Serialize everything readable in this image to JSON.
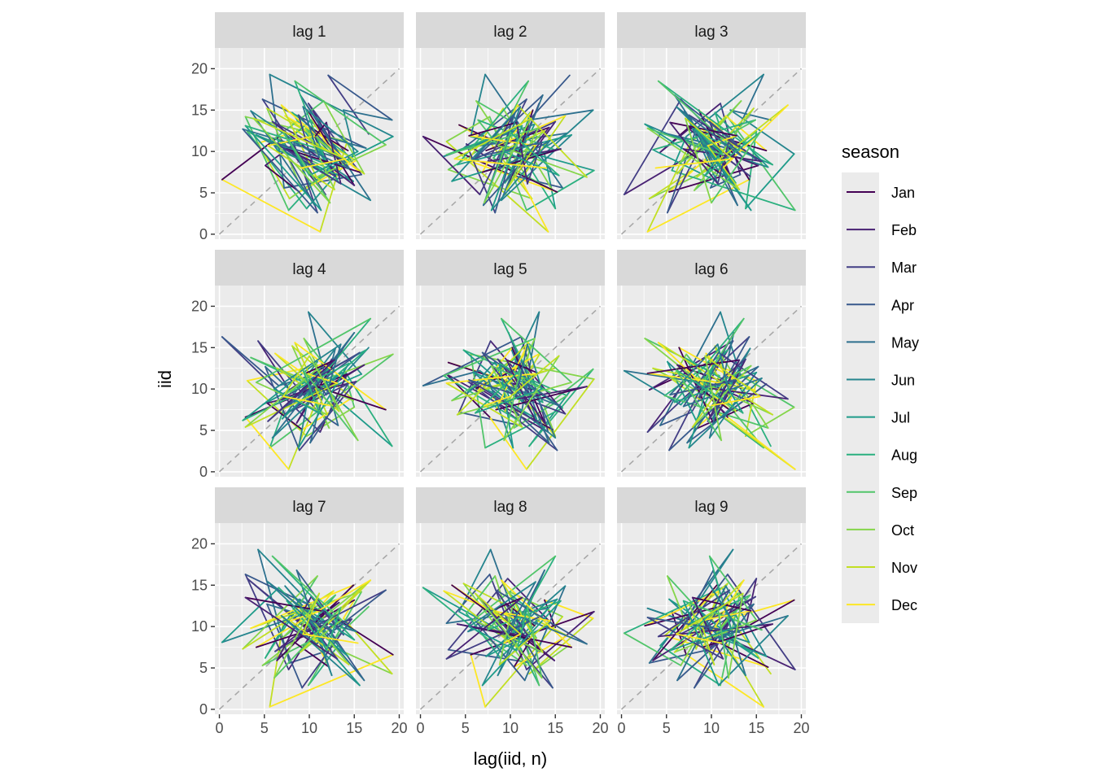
{
  "chart_data": {
    "type": "line",
    "title": "",
    "xlabel": "lag(iid, n)",
    "ylabel": "iid",
    "xlim": [
      0,
      20
    ],
    "ylim": [
      0,
      20
    ],
    "x_ticks": [
      "0",
      "5",
      "10",
      "15",
      "20"
    ],
    "y_ticks": [
      "0",
      "5",
      "10",
      "15",
      "20"
    ],
    "grid": true,
    "reference_line": "y = x (dashed)",
    "facets": [
      "lag 1",
      "lag 2",
      "lag 3",
      "lag 4",
      "lag 5",
      "lag 6",
      "lag 7",
      "lag 8",
      "lag 9"
    ],
    "legend": {
      "title": "season",
      "position": "right",
      "entries": [
        {
          "label": "Jan",
          "color": "#440154"
        },
        {
          "label": "Feb",
          "color": "#482173"
        },
        {
          "label": "Mar",
          "color": "#433E85"
        },
        {
          "label": "Apr",
          "color": "#38598C"
        },
        {
          "label": "May",
          "color": "#2D708E"
        },
        {
          "label": "Jun",
          "color": "#25858E"
        },
        {
          "label": "Jul",
          "color": "#1E9B8A"
        },
        {
          "label": "Aug",
          "color": "#2BB07F"
        },
        {
          "label": "Sep",
          "color": "#51C56A"
        },
        {
          "label": "Oct",
          "color": "#85D54A"
        },
        {
          "label": "Nov",
          "color": "#C2DF23"
        },
        {
          "label": "Dec",
          "color": "#FDE725"
        }
      ]
    },
    "series_note": "Monthly iid series approx. values (years as rows, Jan..Dec)",
    "series": [
      [
        16.6,
        12.1,
        19.2,
        13.8,
        15.0,
        9.7,
        3.1,
        12.4,
        7.8,
        4.3,
        11.0,
        13.2
      ],
      [
        9.9,
        15.8,
        7.2,
        5.6,
        19.3,
        11.8,
        7.7,
        2.9,
        14.2,
        11.2,
        0.3,
        6.6
      ],
      [
        11.8,
        4.8,
        16.3,
        10.4,
        12.2,
        8.1,
        14.7,
        9.2,
        5.3,
        15.2,
        8.9,
        5.1
      ],
      [
        8.3,
        10.9,
        2.6,
        12.7,
        9.4,
        13.3,
        6.2,
        11.6,
        16.1,
        7.3,
        14.3,
        10.1
      ],
      [
        12.9,
        7.0,
        10.6,
        3.5,
        14.9,
        6.4,
        10.2,
        13.8,
        8.6,
        12.5,
        9.8,
        15.0
      ],
      [
        5.9,
        13.6,
        9.0,
        16.8,
        4.1,
        12.0,
        8.4,
        18.5,
        10.8,
        6.9,
        15.6,
        7.5
      ],
      [
        10.3,
        8.8,
        14.4,
        7.9,
        11.3,
        2.9,
        13.1,
        9.6,
        12.8,
        5.4,
        10.7,
        11.9
      ],
      [
        13.5,
        6.1,
        11.1,
        9.3,
        15.4,
        10.0,
        7.1,
        12.3,
        3.8,
        14.0,
        9.1,
        8.0
      ]
    ]
  }
}
